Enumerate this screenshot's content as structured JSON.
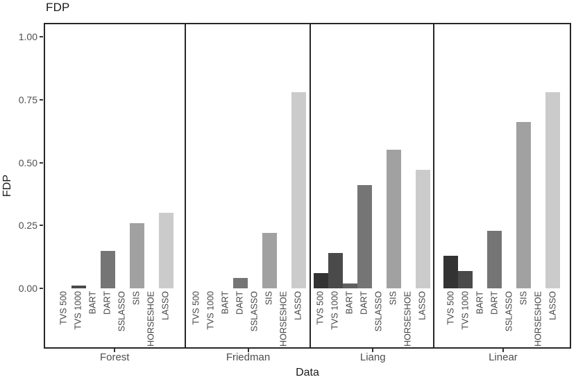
{
  "chart_data": {
    "type": "bar",
    "title": "FDP",
    "ylabel": "FDP",
    "xlabel": "Data",
    "grid": "off",
    "legend": "none",
    "ylim": [
      -0.24,
      1.06
    ],
    "y_ticks": [
      "1.00",
      "0.75",
      "0.50",
      "0.25",
      "0.00"
    ],
    "y_tick_values": [
      1,
      0.75,
      0.5,
      0.25,
      0
    ],
    "methods": [
      "TVS 500",
      "TVS 1000",
      "BART",
      "DART",
      "SSLASSO",
      "SIS",
      "HORSESHOE",
      "LASSO"
    ],
    "method_colors": [
      "#333333",
      "#4a4a4a",
      "#606060",
      "#757575",
      "#8b8b8b",
      "#a1a1a1",
      "#b7b7b7",
      "#cbcbcb"
    ],
    "groups": [
      {
        "name": "Forest",
        "values": [
          0,
          0.01,
          0,
          0.15,
          0,
          0.26,
          0,
          0.3
        ]
      },
      {
        "name": "Friedman",
        "values": [
          0,
          0,
          0,
          0.04,
          0,
          0.22,
          0,
          0.78
        ]
      },
      {
        "name": "Liang",
        "values": [
          0.06,
          0.14,
          0.02,
          0.41,
          0,
          0.55,
          0,
          0.47
        ]
      },
      {
        "name": "Linear",
        "values": [
          0.13,
          0.07,
          0,
          0.23,
          0,
          0.66,
          0,
          0.78
        ]
      }
    ],
    "colors": {
      "panel_border": "#262626",
      "axis_text": "#4d4d4d",
      "bar_label_text": "#454545",
      "title_text": "#1a1a1a",
      "background": "#ffffff"
    }
  }
}
